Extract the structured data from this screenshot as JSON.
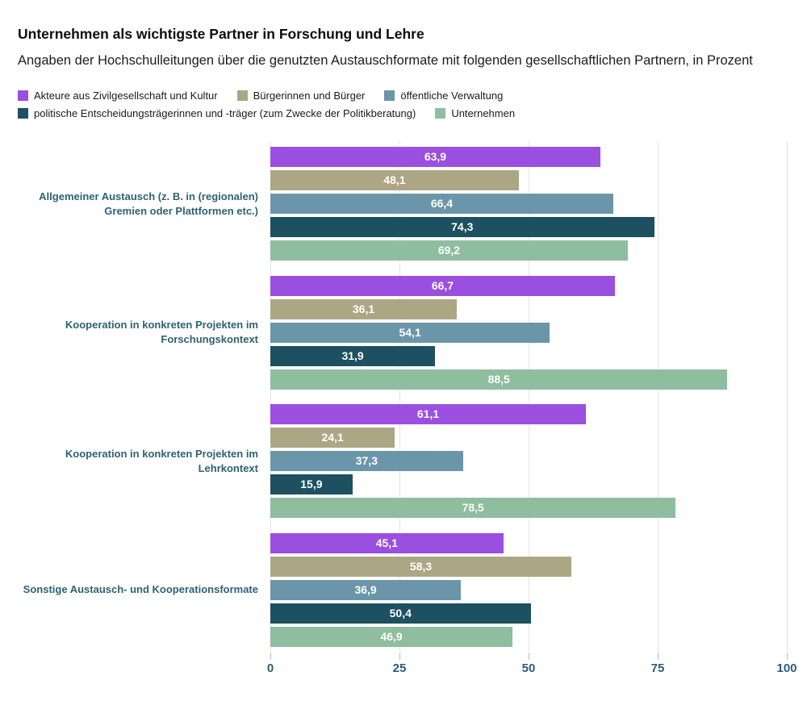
{
  "header": {
    "title": "Unternehmen als wichtigste Partner in Forschung und Lehre",
    "subtitle": "Angaben der Hochschulleitungen über die genutzten Austauschformate mit folgenden gesellschaftlichen Partnern, in Prozent"
  },
  "colors": {
    "zivilgesellschaft": "#9b4fe0",
    "buerger": "#ada685",
    "verwaltung": "#6b96a9",
    "politik": "#1d5060",
    "unternehmen": "#8fbd9f",
    "axis_label": "#2b5d70",
    "category_label": "#2d6272",
    "gridline": "#e4e4e4",
    "value_label": "#ffffff"
  },
  "legend_rows": [
    [
      {
        "label": "Akteure aus Zivilgesellschaft und Kultur",
        "color": "#9b4fe0"
      },
      {
        "label": "Bürgerinnen und Bürger",
        "color": "#ada685"
      },
      {
        "label": "öffentliche Verwaltung",
        "color": "#6b96a9"
      }
    ],
    [
      {
        "label": "politische Entscheidungsträgerinnen und -träger (zum Zwecke der Politikberatung)",
        "color": "#1d5060"
      },
      {
        "label": "Unternehmen",
        "color": "#8fbd9f"
      }
    ]
  ],
  "chart_data": {
    "type": "bar",
    "orientation": "horizontal",
    "title": "Unternehmen als wichtigste Partner in Forschung und Lehre",
    "subtitle": "Angaben der Hochschulleitungen über die genutzten Austauschformate mit folgenden gesellschaftlichen Partnern, in Prozent",
    "unit": "Prozent",
    "decimal_separator": ",",
    "grid": true,
    "legend_position": "top",
    "xlim": [
      0,
      100
    ],
    "xticks": [
      0,
      25,
      50,
      75,
      100
    ],
    "categories": [
      "Allgemeiner Austausch (z. B. in (regionalen) Gremien oder Plattformen etc.)",
      "Kooperation in konkreten Projekten im Forschungskontext",
      "Kooperation in konkreten Projekten im Lehrkontext",
      "Sonstige Austausch- und Kooperationsformate"
    ],
    "series": [
      {
        "name": "Akteure aus Zivilgesellschaft und Kultur",
        "color": "#9b4fe0",
        "values": [
          63.9,
          66.7,
          61.1,
          45.1
        ]
      },
      {
        "name": "Bürgerinnen und Bürger",
        "color": "#ada685",
        "values": [
          48.1,
          36.1,
          24.1,
          58.3
        ]
      },
      {
        "name": "öffentliche Verwaltung",
        "color": "#6b96a9",
        "values": [
          66.4,
          54.1,
          37.3,
          36.9
        ]
      },
      {
        "name": "politische Entscheidungsträgerinnen und -träger (zum Zwecke der Politikberatung)",
        "color": "#1d5060",
        "values": [
          74.3,
          31.9,
          15.9,
          50.4
        ]
      },
      {
        "name": "Unternehmen",
        "color": "#8fbd9f",
        "values": [
          69.2,
          88.5,
          78.5,
          46.9
        ]
      }
    ]
  }
}
